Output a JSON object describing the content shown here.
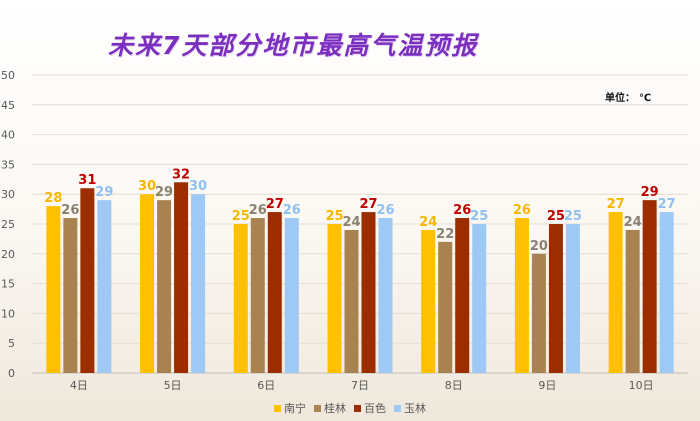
{
  "title": "未来7天部分地市最高气温预报",
  "unit": {
    "label": "单位：",
    "value": "℃"
  },
  "chart_data": {
    "type": "bar",
    "title": "未来7天部分地市最高气温预报",
    "categories": [
      "4日",
      "5日",
      "6日",
      "7日",
      "8日",
      "9日",
      "10日"
    ],
    "series": [
      {
        "name": "南宁",
        "color": "#ffc000",
        "values": [
          28,
          30,
          25,
          25,
          24,
          26,
          27
        ]
      },
      {
        "name": "桂林",
        "color": "#a8834f",
        "values": [
          26,
          29,
          26,
          24,
          22,
          20,
          24
        ]
      },
      {
        "name": "百色",
        "color": "#9b2d00",
        "values": [
          31,
          32,
          27,
          27,
          26,
          25,
          29
        ]
      },
      {
        "name": "玉林",
        "color": "#9dc9f4",
        "values": [
          29,
          30,
          26,
          26,
          25,
          25,
          27
        ]
      }
    ],
    "label_colors": [
      "#f5b800",
      "#8a8170",
      "#c00000",
      "#8fc0ef"
    ],
    "ylim": [
      0,
      50
    ],
    "yticks": [
      0,
      5,
      10,
      15,
      20,
      25,
      30,
      35,
      40,
      45,
      50
    ],
    "grid": true,
    "legend": "bottom"
  }
}
